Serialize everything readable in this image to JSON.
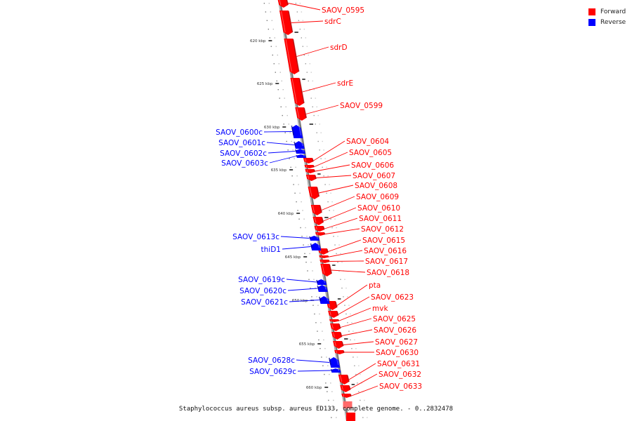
{
  "caption": "Staphylococcus aureus subsp. aureus ED133, complete genome. - 0..2832478",
  "legend": {
    "forward_label": "Forward",
    "reverse_label": "Reverse",
    "forward_color": "#ff0000",
    "reverse_color": "#0000ff"
  },
  "ticks": [
    "620 kbp",
    "625 kbp",
    "630 kbp",
    "635 kbp",
    "640 kbp",
    "645 kbp",
    "650 kbp",
    "655 kbp",
    "660 kbp"
  ],
  "forward_genes": [
    "SAOV_0595",
    "sdrC",
    "sdrD",
    "sdrE",
    "SAOV_0599",
    "SAOV_0604",
    "SAOV_0605",
    "SAOV_0606",
    "SAOV_0607",
    "SAOV_0608",
    "SAOV_0609",
    "SAOV_0610",
    "SAOV_0611",
    "SAOV_0612",
    "SAOV_0615",
    "SAOV_0616",
    "SAOV_0617",
    "SAOV_0618",
    "pta",
    "SAOV_0623",
    "mvk",
    "SAOV_0625",
    "SAOV_0626",
    "SAOV_0627",
    "SAOV_0630",
    "SAOV_0631",
    "SAOV_0632",
    "SAOV_0633"
  ],
  "reverse_genes": [
    "SAOV_0600c",
    "SAOV_0601c",
    "SAOV_0602c",
    "SAOV_0603c",
    "SAOV_0613c",
    "thiD1",
    "SAOV_0619c",
    "SAOV_0620c",
    "SAOV_0621c",
    "SAOV_0628c",
    "SAOV_0629c"
  ]
}
